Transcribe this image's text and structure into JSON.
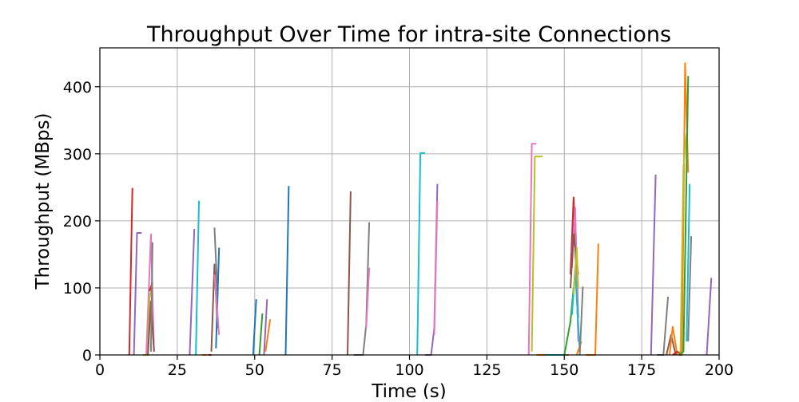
{
  "chart_data": {
    "type": "line",
    "title": "Throughput Over Time for intra-site Connections",
    "xlabel": "Time (s)",
    "ylabel": "Throughput (MBps)",
    "xlim": [
      0,
      200
    ],
    "ylim": [
      0,
      458
    ],
    "xticks": [
      0,
      25,
      50,
      75,
      100,
      125,
      150,
      175,
      200
    ],
    "yticks": [
      0,
      100,
      200,
      300,
      400
    ],
    "grid": true,
    "legend": "none",
    "series": [
      {
        "color": "#d62728",
        "x": [
          9.5,
          10.5
        ],
        "y": [
          0,
          249
        ]
      },
      {
        "color": "#9467bd",
        "x": [
          11,
          12,
          13.5
        ],
        "y": [
          0,
          182,
          182
        ]
      },
      {
        "color": "#e377c2",
        "x": [
          15,
          16.5,
          17.5
        ],
        "y": [
          0,
          180,
          5
        ]
      },
      {
        "color": "#bcbd22",
        "x": [
          14,
          15.5,
          16,
          17
        ],
        "y": [
          0,
          0,
          85,
          105
        ]
      },
      {
        "color": "#8c564b",
        "x": [
          15.5,
          16.5,
          17.5
        ],
        "y": [
          0,
          80,
          5
        ]
      },
      {
        "color": "#d62728",
        "x": [
          16,
          17
        ],
        "y": [
          95,
          108
        ]
      },
      {
        "color": "#7f7f7f",
        "x": [
          16.5,
          17
        ],
        "y": [
          5,
          168
        ]
      },
      {
        "color": "#9467bd",
        "x": [
          29,
          30.5
        ],
        "y": [
          0,
          188
        ]
      },
      {
        "color": "#17becf",
        "x": [
          31,
          32
        ],
        "y": [
          0,
          230
        ]
      },
      {
        "color": "#ff7f0e",
        "x": [
          33,
          34.5
        ],
        "y": [
          0,
          0
        ]
      },
      {
        "color": "#d62728",
        "x": [
          35,
          36
        ],
        "y": [
          0,
          0
        ]
      },
      {
        "color": "#8c564b",
        "x": [
          36,
          37,
          38
        ],
        "y": [
          5,
          135,
          40
        ]
      },
      {
        "color": "#7f7f7f",
        "x": [
          37,
          38
        ],
        "y": [
          190,
          90
        ]
      },
      {
        "color": "#1f77b4",
        "x": [
          37.5,
          38.5
        ],
        "y": [
          10,
          160
        ]
      },
      {
        "color": "#e377c2",
        "x": [
          37,
          38.5
        ],
        "y": [
          120,
          30
        ]
      },
      {
        "color": "#1f77b4",
        "x": [
          49.5,
          50.5
        ],
        "y": [
          0,
          83
        ]
      },
      {
        "color": "#2ca02c",
        "x": [
          51.5,
          52.5
        ],
        "y": [
          0,
          62
        ]
      },
      {
        "color": "#9467bd",
        "x": [
          53,
          54
        ],
        "y": [
          0,
          83
        ]
      },
      {
        "color": "#ff7f0e",
        "x": [
          53.5,
          55
        ],
        "y": [
          5,
          53
        ]
      },
      {
        "color": "#1f77b4",
        "x": [
          60,
          61
        ],
        "y": [
          0,
          252
        ]
      },
      {
        "color": "#8c564b",
        "x": [
          80,
          81
        ],
        "y": [
          0,
          244
        ]
      },
      {
        "color": "#7f7f7f",
        "x": [
          82,
          85,
          86,
          87
        ],
        "y": [
          0,
          0,
          45,
          198
        ]
      },
      {
        "color": "#e377c2",
        "x": [
          86,
          87
        ],
        "y": [
          40,
          130
        ]
      },
      {
        "color": "#17becf",
        "x": [
          102.5,
          103.5,
          105
        ],
        "y": [
          0,
          301,
          301
        ]
      },
      {
        "color": "#9467bd",
        "x": [
          105,
          107,
          108,
          109
        ],
        "y": [
          0,
          0,
          40,
          255
        ]
      },
      {
        "color": "#e377c2",
        "x": [
          108,
          109
        ],
        "y": [
          30,
          230
        ]
      },
      {
        "color": "#e377c2",
        "x": [
          138.5,
          139.5,
          141
        ],
        "y": [
          0,
          315,
          315
        ]
      },
      {
        "color": "#bcbd22",
        "x": [
          139.5,
          140.5,
          143
        ],
        "y": [
          5,
          296,
          296
        ]
      },
      {
        "color": "#ff7f0e",
        "x": [
          141,
          150,
          151.5
        ],
        "y": [
          0,
          0,
          0
        ]
      },
      {
        "color": "#17becf",
        "x": [
          144,
          149,
          150.5
        ],
        "y": [
          0,
          0,
          0
        ]
      },
      {
        "color": "#2ca02c",
        "x": [
          150,
          152,
          153
        ],
        "y": [
          0,
          50,
          100
        ]
      },
      {
        "color": "#d62728",
        "x": [
          152,
          153,
          154.5
        ],
        "y": [
          120,
          235,
          30
        ]
      },
      {
        "color": "#9467bd",
        "x": [
          152.5,
          153.5,
          154.5
        ],
        "y": [
          150,
          215,
          55
        ]
      },
      {
        "color": "#e377c2",
        "x": [
          152.5,
          153.5,
          154.5
        ],
        "y": [
          130,
          220,
          20
        ]
      },
      {
        "color": "#8c564b",
        "x": [
          152,
          153,
          154.5
        ],
        "y": [
          100,
          180,
          120
        ]
      },
      {
        "color": "#17becf",
        "x": [
          152.5,
          153.5,
          155
        ],
        "y": [
          60,
          128,
          5
        ]
      },
      {
        "color": "#bcbd22",
        "x": [
          153,
          154,
          154.5
        ],
        "y": [
          90,
          160,
          100
        ]
      },
      {
        "color": "#ff7f0e",
        "x": [
          154,
          155.5
        ],
        "y": [
          0,
          20
        ]
      },
      {
        "color": "#7f7f7f",
        "x": [
          155,
          156
        ],
        "y": [
          0,
          102
        ]
      },
      {
        "color": "#ff7f0e",
        "x": [
          157,
          160,
          161
        ],
        "y": [
          0,
          0,
          166
        ]
      },
      {
        "color": "#9467bd",
        "x": [
          178,
          179.5
        ],
        "y": [
          0,
          269
        ]
      },
      {
        "color": "#7f7f7f",
        "x": [
          180,
          182,
          183.5
        ],
        "y": [
          0,
          0,
          87
        ]
      },
      {
        "color": "#8c564b",
        "x": [
          183,
          184.5,
          186
        ],
        "y": [
          0,
          30,
          0
        ]
      },
      {
        "color": "#ff7f0e",
        "x": [
          184,
          185,
          186.5
        ],
        "y": [
          0,
          42,
          0
        ]
      },
      {
        "color": "#d62728",
        "x": [
          185,
          186.5,
          188
        ],
        "y": [
          0,
          5,
          0
        ]
      },
      {
        "color": "#ff7f0e",
        "x": [
          187,
          188,
          189,
          190
        ],
        "y": [
          0,
          0,
          435,
          272
        ]
      },
      {
        "color": "#bcbd22",
        "x": [
          187.5,
          188.5,
          189.5
        ],
        "y": [
          0,
          280,
          330
        ]
      },
      {
        "color": "#2ca02c",
        "x": [
          187,
          188.5,
          190
        ],
        "y": [
          0,
          5,
          416
        ]
      },
      {
        "color": "#17becf",
        "x": [
          189.5,
          190.5
        ],
        "y": [
          20,
          255
        ]
      },
      {
        "color": "#7f7f7f",
        "x": [
          190,
          191
        ],
        "y": [
          20,
          177
        ]
      },
      {
        "color": "#9467bd",
        "x": [
          196,
          197.5
        ],
        "y": [
          0,
          115
        ]
      }
    ]
  }
}
